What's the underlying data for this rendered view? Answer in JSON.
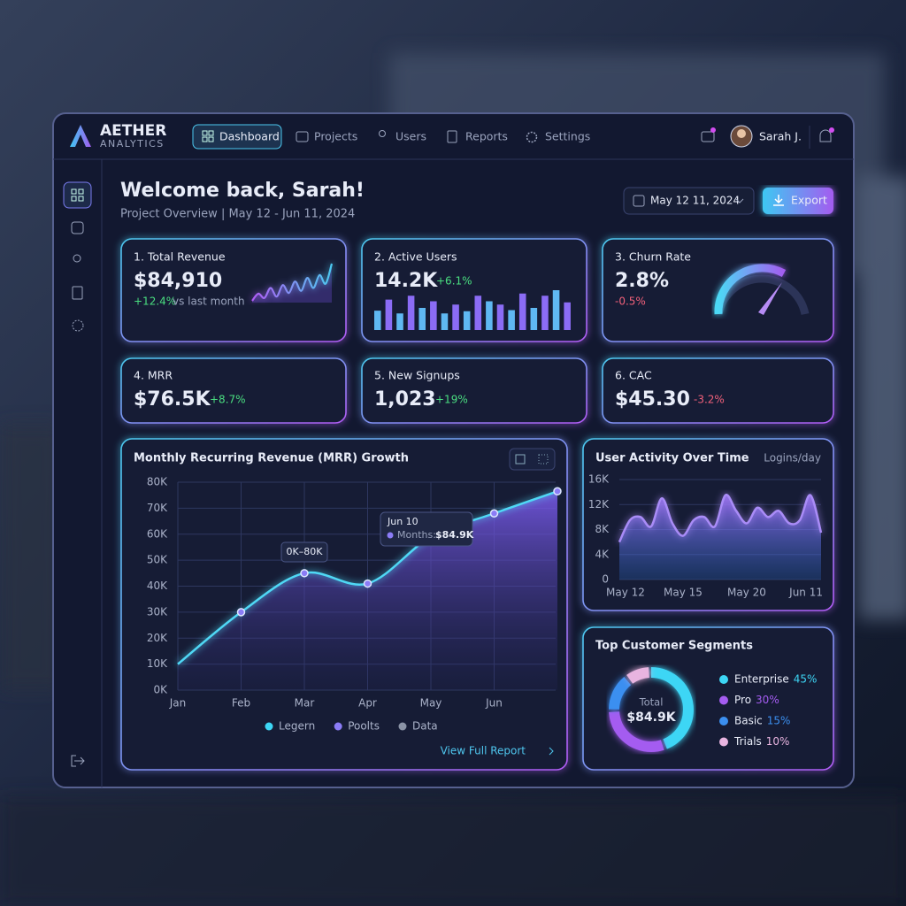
{
  "brand": {
    "name": "AETHER",
    "tagline": "ANALYTICS"
  },
  "nav": {
    "items": [
      "Dashboard",
      "Projects",
      "Users",
      "Reports",
      "Settings"
    ],
    "user": "Sarah J."
  },
  "header": {
    "title": "Welcome back, Sarah!",
    "subtitle": "Project Overview | May 12 - Jun 11, 2024",
    "date_range": "May 12 11, 2024",
    "export": "Export"
  },
  "kpis": [
    {
      "label": "1. Total Revenue",
      "value": "$84,910",
      "change": "+12.4%",
      "note": "vs last month",
      "sparkline": [
        20,
        30,
        24,
        38,
        26,
        42,
        31,
        47,
        34,
        52,
        38,
        56,
        44,
        72
      ]
    },
    {
      "label": "2. Active Users",
      "value": "14.2K",
      "change": "+6.1%",
      "bars": [
        35,
        55,
        30,
        62,
        40,
        52,
        30,
        46,
        34,
        62,
        52,
        46,
        36,
        66,
        40,
        62,
        72,
        50
      ]
    },
    {
      "label": "3. Churn Rate",
      "value": "2.8%",
      "change": "-0.5%"
    },
    {
      "label": "4. MRR",
      "value": "$76.5K",
      "change": "+8.7%"
    },
    {
      "label": "5. New Signups",
      "value": "1,023",
      "change": "+19%"
    },
    {
      "label": "6. CAC",
      "value": "$45.30",
      "change": "-3.2%"
    }
  ],
  "mrr_chart": {
    "type": "area",
    "title": "Monthly Recurring Revenue (MRR) Growth",
    "categories": [
      "Jan",
      "Feb",
      "Mar",
      "Apr",
      "May",
      "Jun",
      null
    ],
    "series": [
      {
        "color": "#4fd8f5",
        "values": [
          10000,
          30000,
          45000,
          41000,
          59000,
          68000,
          76500
        ]
      }
    ],
    "ylim": [
      0,
      80000
    ],
    "yticks": [
      {
        "value": 0,
        "label": "0K"
      },
      {
        "value": 10000,
        "label": "10K"
      },
      {
        "value": 20000,
        "label": "20K"
      },
      {
        "value": 30000,
        "label": "30K"
      },
      {
        "value": 40000,
        "label": "40K"
      },
      {
        "value": 50000,
        "label": "50K"
      },
      {
        "value": 60000,
        "label": "60K"
      },
      {
        "value": 70000,
        "label": "70K"
      },
      {
        "value": 80000,
        "label": "80K"
      }
    ],
    "grid": true,
    "annotations": [
      "0K–80K",
      "Jun 10",
      "Months:",
      "$84.9K"
    ],
    "legend": [
      {
        "name": "Legern",
        "color": "#3dd6f5"
      },
      {
        "name": "Poolts",
        "color": "#8b7cf6"
      },
      {
        "name": "Data",
        "color": "#8a93a6"
      }
    ],
    "link": "View Full Report"
  },
  "activity_chart": {
    "type": "area",
    "title": "User Activity Over Time",
    "unit_label": "Logins/day",
    "categories": [
      "May 12",
      null,
      null,
      null,
      null,
      null,
      "May 15",
      null,
      null,
      null,
      null,
      null,
      "May 20",
      null,
      null,
      null,
      null,
      null,
      null,
      "Jun 11"
    ],
    "series": [
      {
        "color": "#a98cf7",
        "values": [
          6000,
          9500,
          10000,
          8500,
          13000,
          9000,
          7000,
          9500,
          10000,
          8500,
          13500,
          11000,
          9000,
          11500,
          10000,
          11000,
          9000,
          9500,
          13500,
          7500
        ]
      }
    ],
    "ylim": [
      0,
      16000
    ],
    "yticks": [
      0,
      {
        "value": 4000,
        "label": "4K"
      },
      {
        "value": 8000,
        "label": "8K"
      },
      {
        "value": 12000,
        "label": "12K"
      },
      {
        "value": 16000,
        "label": "16K"
      }
    ],
    "grid": true
  },
  "segments_chart": {
    "type": "donut",
    "title": "Top Customer Segments",
    "center_label": "Total",
    "center_value": "$84.9K",
    "categories": [
      "Enterprise",
      "Pro",
      "Basic",
      "Trials"
    ],
    "values": [
      45,
      30,
      15,
      10
    ],
    "value_labels": [
      "45%",
      "30%",
      "15%",
      "10%"
    ],
    "colors": [
      "#3dd6f5",
      "#a45cf0",
      "#3b8ff0",
      "#e8b4e0"
    ]
  }
}
